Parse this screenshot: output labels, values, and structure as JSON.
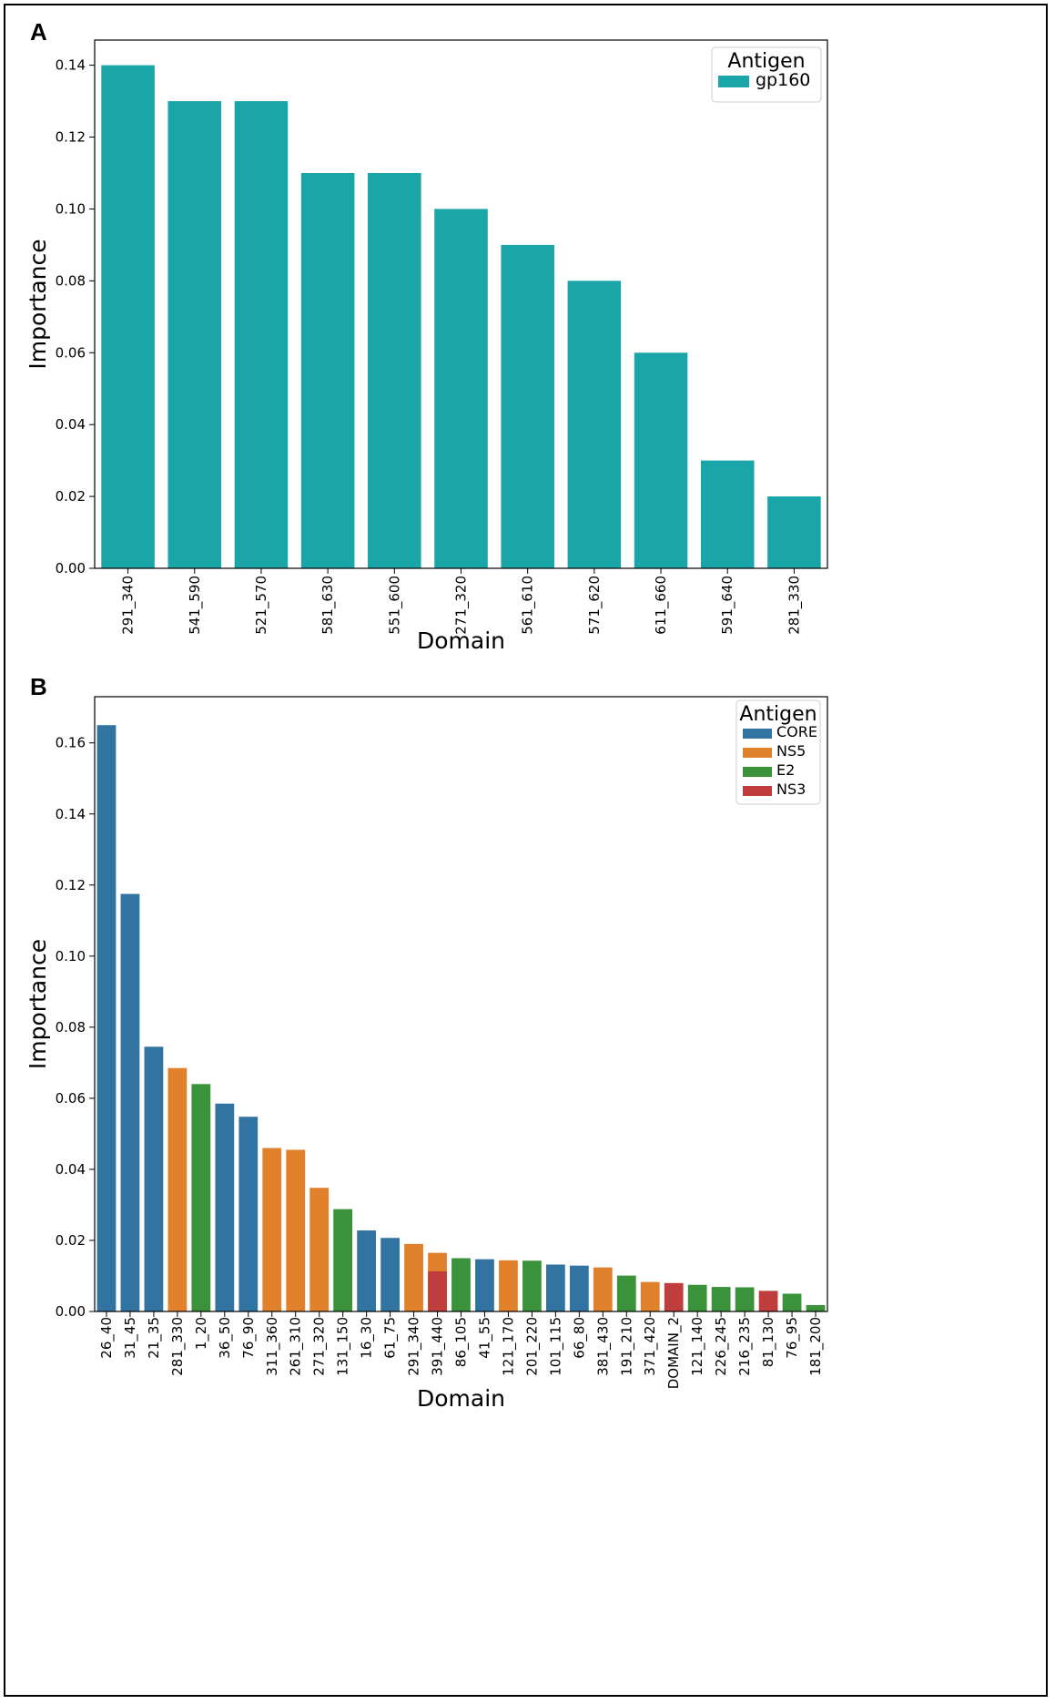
{
  "chart_data": [
    {
      "panel_label": "A",
      "type": "bar",
      "xlabel": "Domain",
      "ylabel": "Importance",
      "ylim": [
        0,
        0.147
      ],
      "yticks": [
        "0.00",
        "0.02",
        "0.04",
        "0.06",
        "0.08",
        "0.10",
        "0.12",
        "0.14"
      ],
      "legend": {
        "title": "Antigen",
        "entries": [
          {
            "name": "gp160",
            "color": "#1aa6a8"
          }
        ],
        "placement": "top-right"
      },
      "categories": [
        "291_340",
        "541_590",
        "521_570",
        "581_630",
        "551_600",
        "271_320",
        "561_610",
        "571_620",
        "611_660",
        "591_640",
        "281_330"
      ],
      "values": [
        0.14,
        0.13,
        0.13,
        0.11,
        0.11,
        0.1,
        0.09,
        0.08,
        0.06,
        0.03,
        0.02
      ],
      "antigen": [
        "gp160",
        "gp160",
        "gp160",
        "gp160",
        "gp160",
        "gp160",
        "gp160",
        "gp160",
        "gp160",
        "gp160",
        "gp160"
      ]
    },
    {
      "panel_label": "B",
      "type": "bar",
      "xlabel": "Domain",
      "ylabel": "Importance",
      "ylim": [
        0,
        0.173
      ],
      "yticks": [
        "0.00",
        "0.02",
        "0.04",
        "0.06",
        "0.08",
        "0.10",
        "0.12",
        "0.14",
        "0.16"
      ],
      "legend": {
        "title": "Antigen",
        "entries": [
          {
            "name": "CORE",
            "color": "#3274a1"
          },
          {
            "name": "NS5",
            "color": "#e1812c"
          },
          {
            "name": "E2",
            "color": "#3a923a"
          },
          {
            "name": "NS3",
            "color": "#c03d3e"
          }
        ],
        "placement": "top-right"
      },
      "categories": [
        "26_40",
        "31_45",
        "21_35",
        "281_330",
        "1_20",
        "36_50",
        "76_90",
        "311_360",
        "261_310",
        "271_320",
        "131_150",
        "16_30",
        "61_75",
        "291_340",
        "391_440",
        "86_105",
        "41_55",
        "121_170",
        "201_220",
        "101_115",
        "66_80",
        "381_430",
        "191_210",
        "371_420",
        "DOMAIN_2",
        "121_140",
        "226_245",
        "216_235",
        "81_130",
        "76_95",
        "181_200"
      ],
      "values": [
        0.165,
        0.1175,
        0.0745,
        0.0685,
        0.064,
        0.0585,
        0.0548,
        0.046,
        0.0455,
        0.0348,
        0.0288,
        0.0228,
        0.0207,
        0.019,
        0.0165,
        0.015,
        0.0147,
        0.0144,
        0.0143,
        0.0132,
        0.0129,
        0.0124,
        0.0101,
        0.0083,
        0.008,
        0.0075,
        0.0069,
        0.0068,
        0.0058,
        0.005,
        0.0018
      ],
      "antigen": [
        "CORE",
        "CORE",
        "CORE",
        "NS5",
        "E2",
        "CORE",
        "CORE",
        "NS5",
        "NS5",
        "NS5",
        "E2",
        "CORE",
        "CORE",
        "NS5",
        "NS5",
        "E2",
        "CORE",
        "NS5",
        "E2",
        "CORE",
        "CORE",
        "NS5",
        "E2",
        "NS5",
        "NS3",
        "E2",
        "E2",
        "E2",
        "NS3",
        "E2",
        "E2"
      ],
      "overlays": [
        {
          "category": "391_440",
          "antigen": "NS3",
          "value": 0.0113
        }
      ]
    }
  ]
}
